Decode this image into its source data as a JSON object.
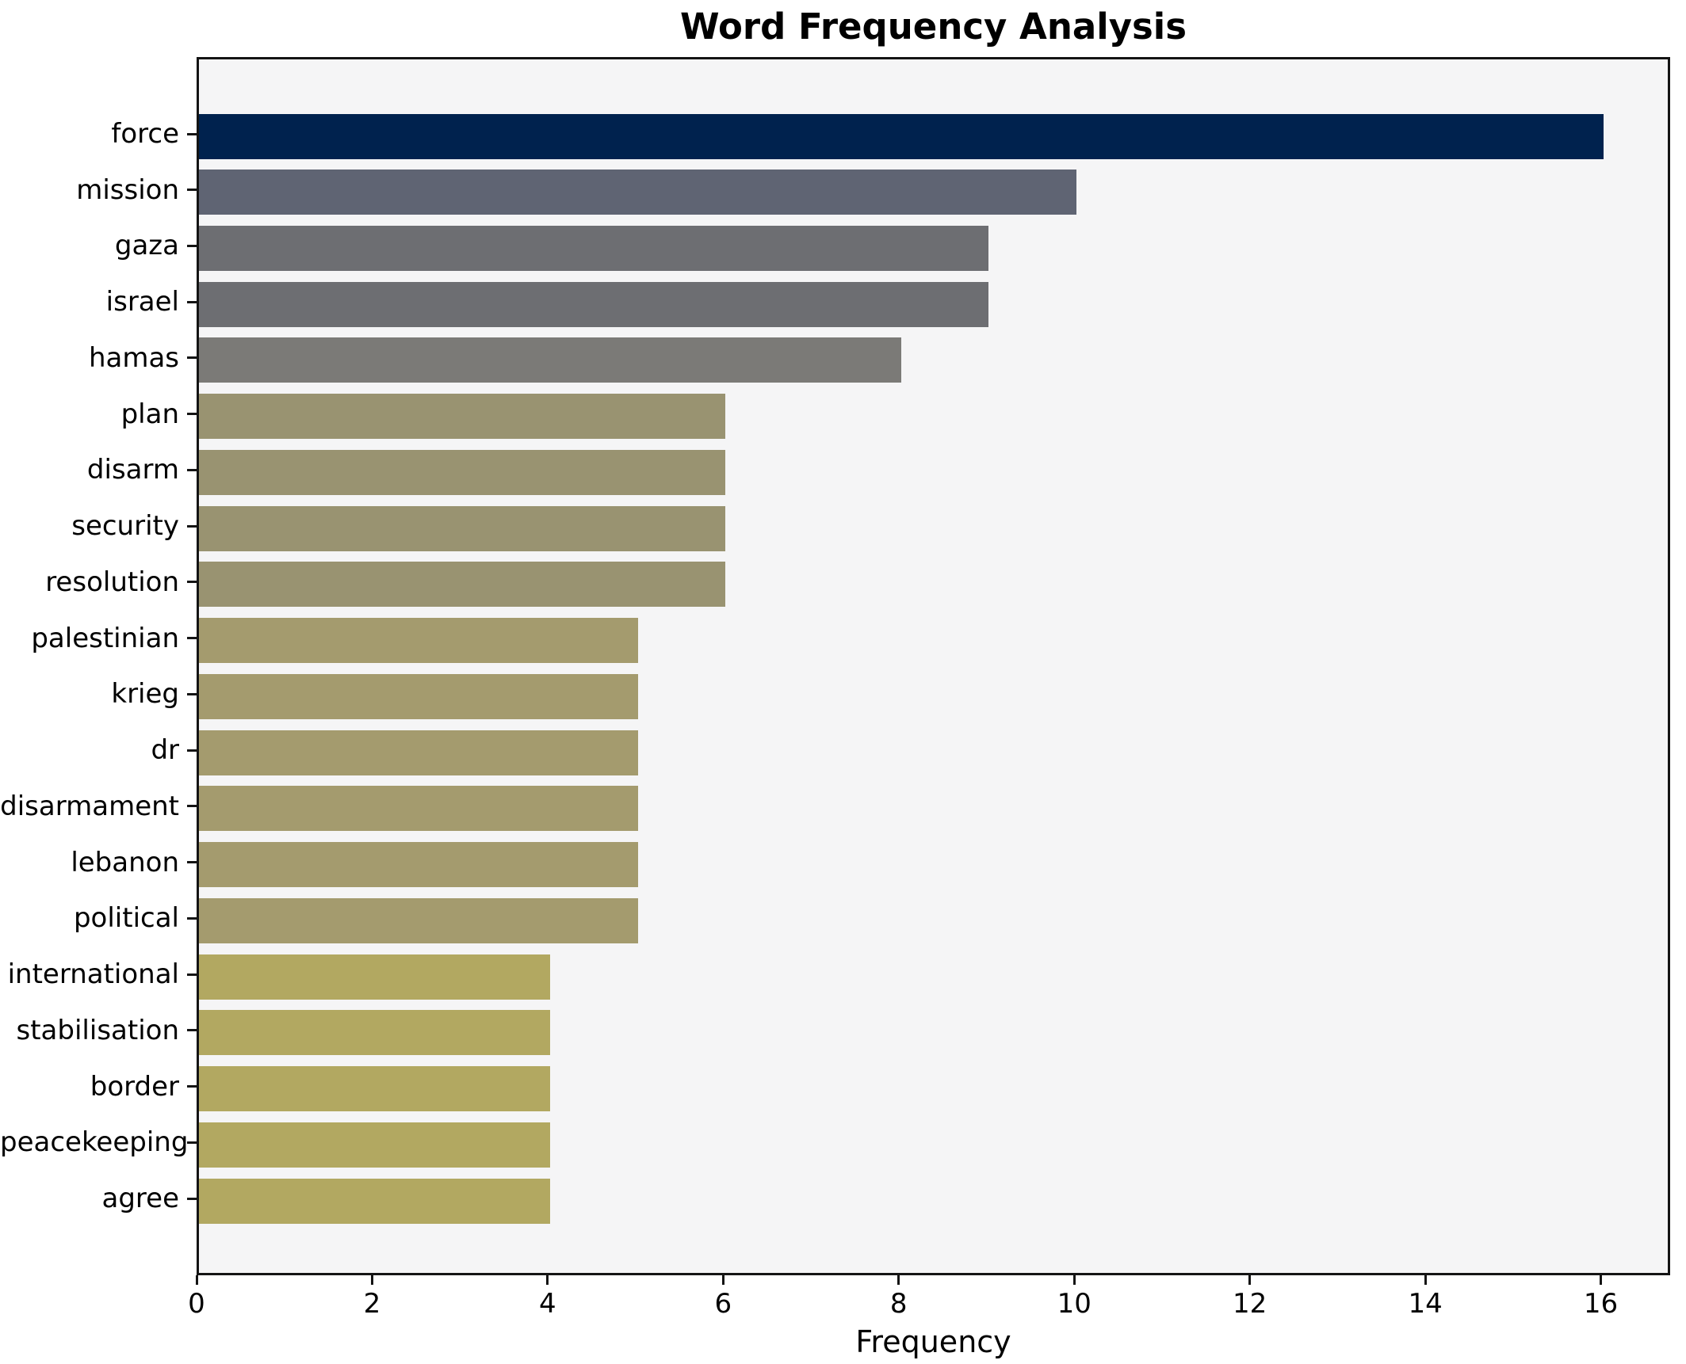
{
  "chart_data": {
    "type": "bar",
    "orientation": "horizontal",
    "title": "Word Frequency Analysis",
    "xlabel": "Frequency",
    "ylabel": "",
    "categories": [
      "force",
      "mission",
      "gaza",
      "israel",
      "hamas",
      "plan",
      "disarm",
      "security",
      "resolution",
      "palestinian",
      "krieg",
      "dr",
      "disarmament",
      "lebanon",
      "political",
      "international",
      "stabilisation",
      "border",
      "peacekeeping",
      "agree"
    ],
    "values": [
      16,
      10,
      9,
      9,
      8,
      6,
      6,
      6,
      6,
      5,
      5,
      5,
      5,
      5,
      5,
      4,
      4,
      4,
      4,
      4
    ],
    "bar_colors": [
      "#00224e",
      "#5f6473",
      "#6d6e72",
      "#6d6e72",
      "#7b7a77",
      "#999371",
      "#999371",
      "#999371",
      "#999371",
      "#a49b6e",
      "#a49b6e",
      "#a49b6e",
      "#a49b6e",
      "#a49b6e",
      "#a49b6e",
      "#b2a861",
      "#b2a861",
      "#b2a861",
      "#b2a861",
      "#b2a861"
    ],
    "xlim": [
      0,
      16.79
    ],
    "xticks": [
      0,
      2,
      4,
      6,
      8,
      10,
      12,
      14,
      16
    ],
    "grid": false,
    "legend": null,
    "plot_background": "#f5f5f6",
    "figure_background": "#ffffff",
    "spine_color": "#141414",
    "text_color": "#000000"
  }
}
